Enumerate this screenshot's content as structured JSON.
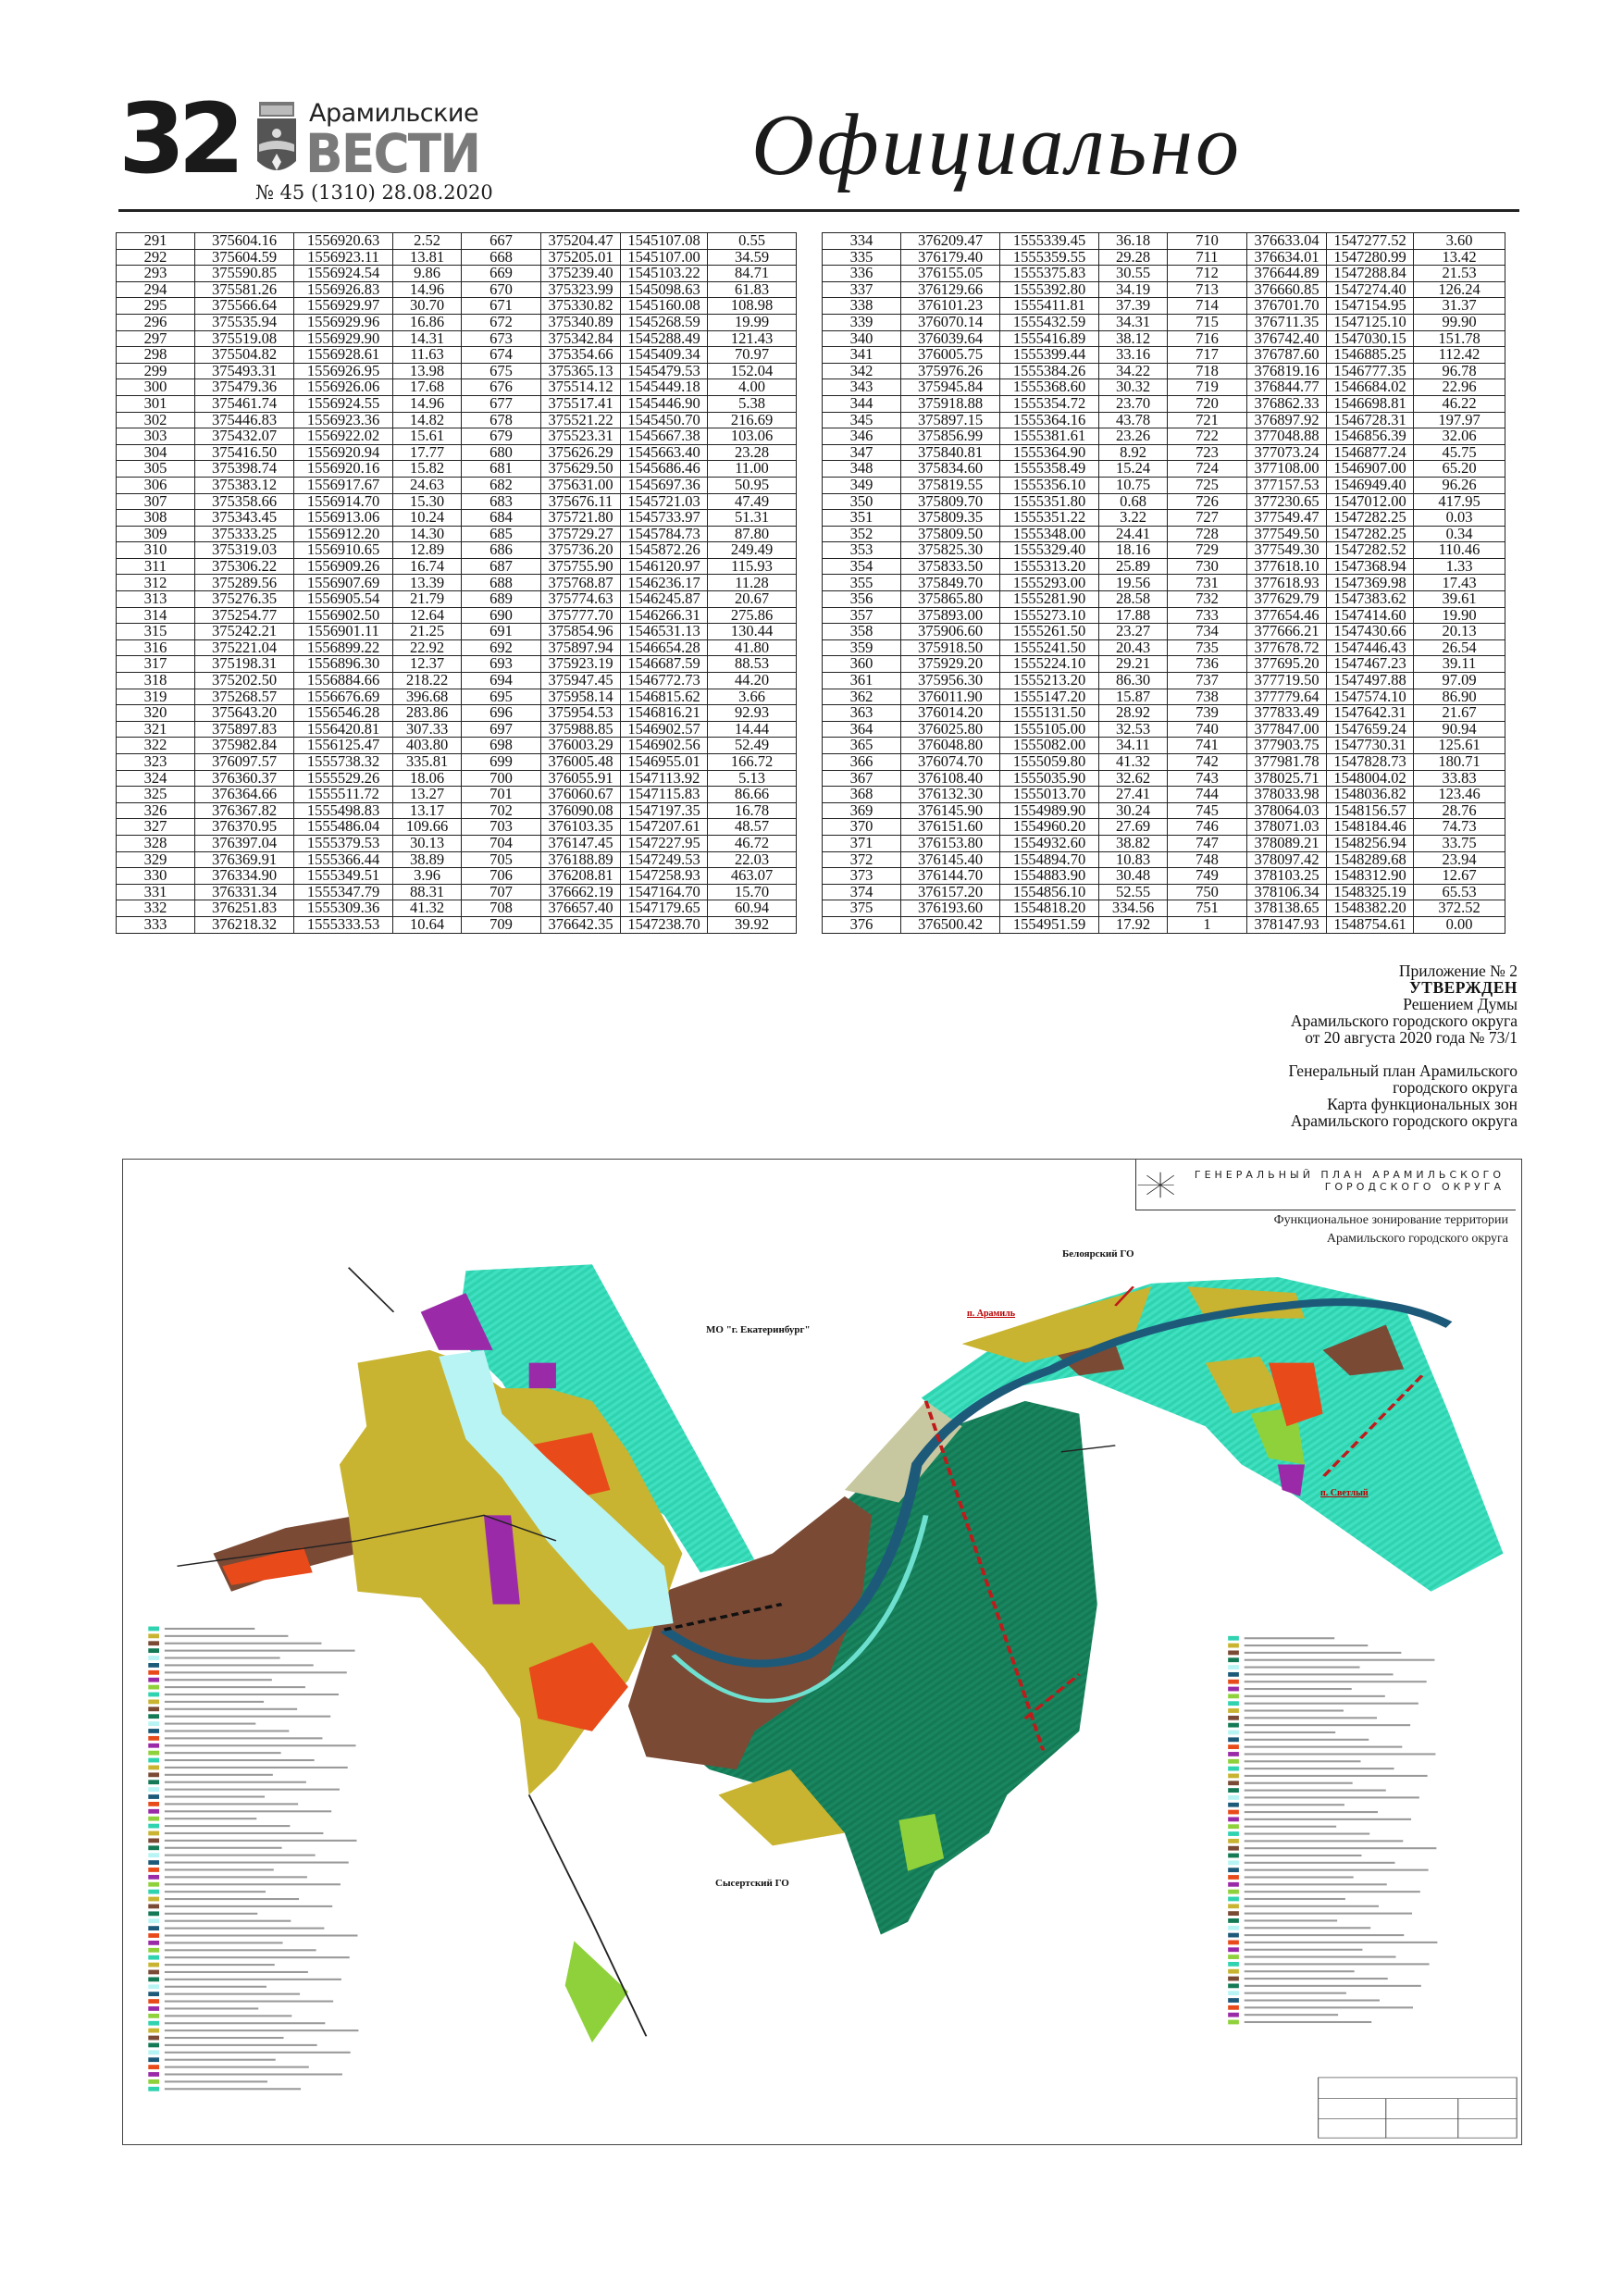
{
  "header": {
    "page_number": "32",
    "newspaper_name_top": "Арамильские",
    "newspaper_name_main": "ВЕСТИ",
    "issue": "№ 45 (1310) 28.08.2020",
    "section": "Официально"
  },
  "table_left": {
    "rows": [
      [
        "291",
        "375604.16",
        "1556920.63",
        "2.52",
        "667",
        "375204.47",
        "1545107.08",
        "0.55"
      ],
      [
        "292",
        "375604.59",
        "1556923.11",
        "13.81",
        "668",
        "375205.01",
        "1545107.00",
        "34.59"
      ],
      [
        "293",
        "375590.85",
        "1556924.54",
        "9.86",
        "669",
        "375239.40",
        "1545103.22",
        "84.71"
      ],
      [
        "294",
        "375581.26",
        "1556926.83",
        "14.96",
        "670",
        "375323.99",
        "1545098.63",
        "61.83"
      ],
      [
        "295",
        "375566.64",
        "1556929.97",
        "30.70",
        "671",
        "375330.82",
        "1545160.08",
        "108.98"
      ],
      [
        "296",
        "375535.94",
        "1556929.96",
        "16.86",
        "672",
        "375340.89",
        "1545268.59",
        "19.99"
      ],
      [
        "297",
        "375519.08",
        "1556929.90",
        "14.31",
        "673",
        "375342.84",
        "1545288.49",
        "121.43"
      ],
      [
        "298",
        "375504.82",
        "1556928.61",
        "11.63",
        "674",
        "375354.66",
        "1545409.34",
        "70.97"
      ],
      [
        "299",
        "375493.31",
        "1556926.95",
        "13.98",
        "675",
        "375365.13",
        "1545479.53",
        "152.04"
      ],
      [
        "300",
        "375479.36",
        "1556926.06",
        "17.68",
        "676",
        "375514.12",
        "1545449.18",
        "4.00"
      ],
      [
        "301",
        "375461.74",
        "1556924.55",
        "14.96",
        "677",
        "375517.41",
        "1545446.90",
        "5.38"
      ],
      [
        "302",
        "375446.83",
        "1556923.36",
        "14.82",
        "678",
        "375521.22",
        "1545450.70",
        "216.69"
      ],
      [
        "303",
        "375432.07",
        "1556922.02",
        "15.61",
        "679",
        "375523.31",
        "1545667.38",
        "103.06"
      ],
      [
        "304",
        "375416.50",
        "1556920.94",
        "17.77",
        "680",
        "375626.29",
        "1545663.40",
        "23.28"
      ],
      [
        "305",
        "375398.74",
        "1556920.16",
        "15.82",
        "681",
        "375629.50",
        "1545686.46",
        "11.00"
      ],
      [
        "306",
        "375383.12",
        "1556917.67",
        "24.63",
        "682",
        "375631.00",
        "1545697.36",
        "50.95"
      ],
      [
        "307",
        "375358.66",
        "1556914.70",
        "15.30",
        "683",
        "375676.11",
        "1545721.03",
        "47.49"
      ],
      [
        "308",
        "375343.45",
        "1556913.06",
        "10.24",
        "684",
        "375721.80",
        "1545733.97",
        "51.31"
      ],
      [
        "309",
        "375333.25",
        "1556912.20",
        "14.30",
        "685",
        "375729.27",
        "1545784.73",
        "87.80"
      ],
      [
        "310",
        "375319.03",
        "1556910.65",
        "12.89",
        "686",
        "375736.20",
        "1545872.26",
        "249.49"
      ],
      [
        "311",
        "375306.22",
        "1556909.26",
        "16.74",
        "687",
        "375755.90",
        "1546120.97",
        "115.93"
      ],
      [
        "312",
        "375289.56",
        "1556907.69",
        "13.39",
        "688",
        "375768.87",
        "1546236.17",
        "11.28"
      ],
      [
        "313",
        "375276.35",
        "1556905.54",
        "21.79",
        "689",
        "375774.63",
        "1546245.87",
        "20.67"
      ],
      [
        "314",
        "375254.77",
        "1556902.50",
        "12.64",
        "690",
        "375777.70",
        "1546266.31",
        "275.86"
      ],
      [
        "315",
        "375242.21",
        "1556901.11",
        "21.25",
        "691",
        "375854.96",
        "1546531.13",
        "130.44"
      ],
      [
        "316",
        "375221.04",
        "1556899.22",
        "22.92",
        "692",
        "375897.94",
        "1546654.28",
        "41.80"
      ],
      [
        "317",
        "375198.31",
        "1556896.30",
        "12.37",
        "693",
        "375923.19",
        "1546687.59",
        "88.53"
      ],
      [
        "318",
        "375202.50",
        "1556884.66",
        "218.22",
        "694",
        "375947.45",
        "1546772.73",
        "44.20"
      ],
      [
        "319",
        "375268.57",
        "1556676.69",
        "396.68",
        "695",
        "375958.14",
        "1546815.62",
        "3.66"
      ],
      [
        "320",
        "375643.20",
        "1556546.28",
        "283.86",
        "696",
        "375954.53",
        "1546816.21",
        "92.93"
      ],
      [
        "321",
        "375897.83",
        "1556420.81",
        "307.33",
        "697",
        "375988.85",
        "1546902.57",
        "14.44"
      ],
      [
        "322",
        "375982.84",
        "1556125.47",
        "403.80",
        "698",
        "376003.29",
        "1546902.56",
        "52.49"
      ],
      [
        "323",
        "376097.57",
        "1555738.32",
        "335.81",
        "699",
        "376005.48",
        "1546955.01",
        "166.72"
      ],
      [
        "324",
        "376360.37",
        "1555529.26",
        "18.06",
        "700",
        "376055.91",
        "1547113.92",
        "5.13"
      ],
      [
        "325",
        "376364.66",
        "1555511.72",
        "13.27",
        "701",
        "376060.67",
        "1547115.83",
        "86.66"
      ],
      [
        "326",
        "376367.82",
        "1555498.83",
        "13.17",
        "702",
        "376090.08",
        "1547197.35",
        "16.78"
      ],
      [
        "327",
        "376370.95",
        "1555486.04",
        "109.66",
        "703",
        "376103.35",
        "1547207.61",
        "48.57"
      ],
      [
        "328",
        "376397.04",
        "1555379.53",
        "30.13",
        "704",
        "376147.45",
        "1547227.95",
        "46.72"
      ],
      [
        "329",
        "376369.91",
        "1555366.44",
        "38.89",
        "705",
        "376188.89",
        "1547249.53",
        "22.03"
      ],
      [
        "330",
        "376334.90",
        "1555349.51",
        "3.96",
        "706",
        "376208.81",
        "1547258.93",
        "463.07"
      ],
      [
        "331",
        "376331.34",
        "1555347.79",
        "88.31",
        "707",
        "376662.19",
        "1547164.70",
        "15.70"
      ],
      [
        "332",
        "376251.83",
        "1555309.36",
        "41.32",
        "708",
        "376657.40",
        "1547179.65",
        "60.94"
      ],
      [
        "333",
        "376218.32",
        "1555333.53",
        "10.64",
        "709",
        "376642.35",
        "1547238.70",
        "39.92"
      ]
    ]
  },
  "table_right": {
    "rows": [
      [
        "334",
        "376209.47",
        "1555339.45",
        "36.18",
        "710",
        "376633.04",
        "1547277.52",
        "3.60"
      ],
      [
        "335",
        "376179.40",
        "1555359.55",
        "29.28",
        "711",
        "376634.01",
        "1547280.99",
        "13.42"
      ],
      [
        "336",
        "376155.05",
        "1555375.83",
        "30.55",
        "712",
        "376644.89",
        "1547288.84",
        "21.53"
      ],
      [
        "337",
        "376129.66",
        "1555392.80",
        "34.19",
        "713",
        "376660.85",
        "1547274.40",
        "126.24"
      ],
      [
        "338",
        "376101.23",
        "1555411.81",
        "37.39",
        "714",
        "376701.70",
        "1547154.95",
        "31.37"
      ],
      [
        "339",
        "376070.14",
        "1555432.59",
        "34.31",
        "715",
        "376711.35",
        "1547125.10",
        "99.90"
      ],
      [
        "340",
        "376039.64",
        "1555416.89",
        "38.12",
        "716",
        "376742.40",
        "1547030.15",
        "151.78"
      ],
      [
        "341",
        "376005.75",
        "1555399.44",
        "33.16",
        "717",
        "376787.60",
        "1546885.25",
        "112.42"
      ],
      [
        "342",
        "375976.26",
        "1555384.26",
        "34.22",
        "718",
        "376819.16",
        "1546777.35",
        "96.78"
      ],
      [
        "343",
        "375945.84",
        "1555368.60",
        "30.32",
        "719",
        "376844.77",
        "1546684.02",
        "22.96"
      ],
      [
        "344",
        "375918.88",
        "1555354.72",
        "23.70",
        "720",
        "376862.33",
        "1546698.81",
        "46.22"
      ],
      [
        "345",
        "375897.15",
        "1555364.16",
        "43.78",
        "721",
        "376897.92",
        "1546728.31",
        "197.97"
      ],
      [
        "346",
        "375856.99",
        "1555381.61",
        "23.26",
        "722",
        "377048.88",
        "1546856.39",
        "32.06"
      ],
      [
        "347",
        "375840.81",
        "1555364.90",
        "8.92",
        "723",
        "377073.24",
        "1546877.24",
        "45.75"
      ],
      [
        "348",
        "375834.60",
        "1555358.49",
        "15.24",
        "724",
        "377108.00",
        "1546907.00",
        "65.20"
      ],
      [
        "349",
        "375819.55",
        "1555356.10",
        "10.75",
        "725",
        "377157.53",
        "1546949.40",
        "96.26"
      ],
      [
        "350",
        "375809.70",
        "1555351.80",
        "0.68",
        "726",
        "377230.65",
        "1547012.00",
        "417.95"
      ],
      [
        "351",
        "375809.35",
        "1555351.22",
        "3.22",
        "727",
        "377549.47",
        "1547282.25",
        "0.03"
      ],
      [
        "352",
        "375809.50",
        "1555348.00",
        "24.41",
        "728",
        "377549.50",
        "1547282.25",
        "0.34"
      ],
      [
        "353",
        "375825.30",
        "1555329.40",
        "18.16",
        "729",
        "377549.30",
        "1547282.52",
        "110.46"
      ],
      [
        "354",
        "375833.50",
        "1555313.20",
        "25.89",
        "730",
        "377618.10",
        "1547368.94",
        "1.33"
      ],
      [
        "355",
        "375849.70",
        "1555293.00",
        "19.56",
        "731",
        "377618.93",
        "1547369.98",
        "17.43"
      ],
      [
        "356",
        "375865.80",
        "1555281.90",
        "28.58",
        "732",
        "377629.79",
        "1547383.62",
        "39.61"
      ],
      [
        "357",
        "375893.00",
        "1555273.10",
        "17.88",
        "733",
        "377654.46",
        "1547414.60",
        "19.90"
      ],
      [
        "358",
        "375906.60",
        "1555261.50",
        "23.27",
        "734",
        "377666.21",
        "1547430.66",
        "20.13"
      ],
      [
        "359",
        "375918.50",
        "1555241.50",
        "20.43",
        "735",
        "377678.72",
        "1547446.43",
        "26.54"
      ],
      [
        "360",
        "375929.20",
        "1555224.10",
        "29.21",
        "736",
        "377695.20",
        "1547467.23",
        "39.11"
      ],
      [
        "361",
        "375956.30",
        "1555213.20",
        "86.30",
        "737",
        "377719.50",
        "1547497.88",
        "97.09"
      ],
      [
        "362",
        "376011.90",
        "1555147.20",
        "15.87",
        "738",
        "377779.64",
        "1547574.10",
        "86.90"
      ],
      [
        "363",
        "376014.20",
        "1555131.50",
        "28.92",
        "739",
        "377833.49",
        "1547642.31",
        "21.67"
      ],
      [
        "364",
        "376025.80",
        "1555105.00",
        "32.53",
        "740",
        "377847.00",
        "1547659.24",
        "90.94"
      ],
      [
        "365",
        "376048.80",
        "1555082.00",
        "34.11",
        "741",
        "377903.75",
        "1547730.31",
        "125.61"
      ],
      [
        "366",
        "376074.70",
        "1555059.80",
        "41.32",
        "742",
        "377981.78",
        "1547828.73",
        "180.71"
      ],
      [
        "367",
        "376108.40",
        "1555035.90",
        "32.62",
        "743",
        "378025.71",
        "1548004.02",
        "33.83"
      ],
      [
        "368",
        "376132.30",
        "1555013.70",
        "27.41",
        "744",
        "378033.98",
        "1548036.82",
        "123.46"
      ],
      [
        "369",
        "376145.90",
        "1554989.90",
        "30.24",
        "745",
        "378064.03",
        "1548156.57",
        "28.76"
      ],
      [
        "370",
        "376151.60",
        "1554960.20",
        "27.69",
        "746",
        "378071.03",
        "1548184.46",
        "74.73"
      ],
      [
        "371",
        "376153.80",
        "1554932.60",
        "38.82",
        "747",
        "378089.21",
        "1548256.94",
        "33.75"
      ],
      [
        "372",
        "376145.40",
        "1554894.70",
        "10.83",
        "748",
        "378097.42",
        "1548289.68",
        "23.94"
      ],
      [
        "373",
        "376144.70",
        "1554883.90",
        "30.48",
        "749",
        "378103.25",
        "1548312.90",
        "12.67"
      ],
      [
        "374",
        "376157.20",
        "1554856.10",
        "52.55",
        "750",
        "378106.34",
        "1548325.19",
        "65.53"
      ],
      [
        "375",
        "376193.60",
        "1554818.20",
        "334.56",
        "751",
        "378138.65",
        "1548382.20",
        "372.52"
      ],
      [
        "376",
        "376500.42",
        "1554951.59",
        "17.92",
        "1",
        "378147.93",
        "1548754.61",
        "0.00"
      ]
    ]
  },
  "appendix": {
    "line1": "Приложение № 2",
    "line2": "УТВЕРЖДЕН",
    "line3": "Решением Думы",
    "line4": "Арамильского городского округа",
    "line5": "от 20 августа 2020 года № 73/1",
    "line6": "Генеральный план Арамильского",
    "line7": "городского округа",
    "line8": "Карта функциональных зон",
    "line9": "Арамильского городского округа"
  },
  "map": {
    "title_line1": "ГЕНЕРАЛЬНЫЙ ПЛАН АРАМИЛЬСКОГО",
    "title_line2": "ГОРОДСКОГО ОКРУГА",
    "subtitle_line1": "Функциональное зонирование территории",
    "subtitle_line2": "Арамильского городского округа",
    "labels": {
      "ekaterinburg": "МО \"г. Екатеринбург\"",
      "beloyarsky": "Белоярский ГО",
      "sysertsky": "Сысертский ГО",
      "settlement_1": "п. Арамиль",
      "settlement_2": "п. Светлый"
    },
    "colors": {
      "forest_hatched": "#2fd3b0",
      "residential": "#c8b430",
      "industrial": "#7a4a35",
      "dark_forest": "#137a55",
      "water": "#b8f4f4",
      "river": "#1d5a7a",
      "public": "#e84a1a",
      "special": "#9b2aa8",
      "agri": "#8fd13a"
    }
  }
}
